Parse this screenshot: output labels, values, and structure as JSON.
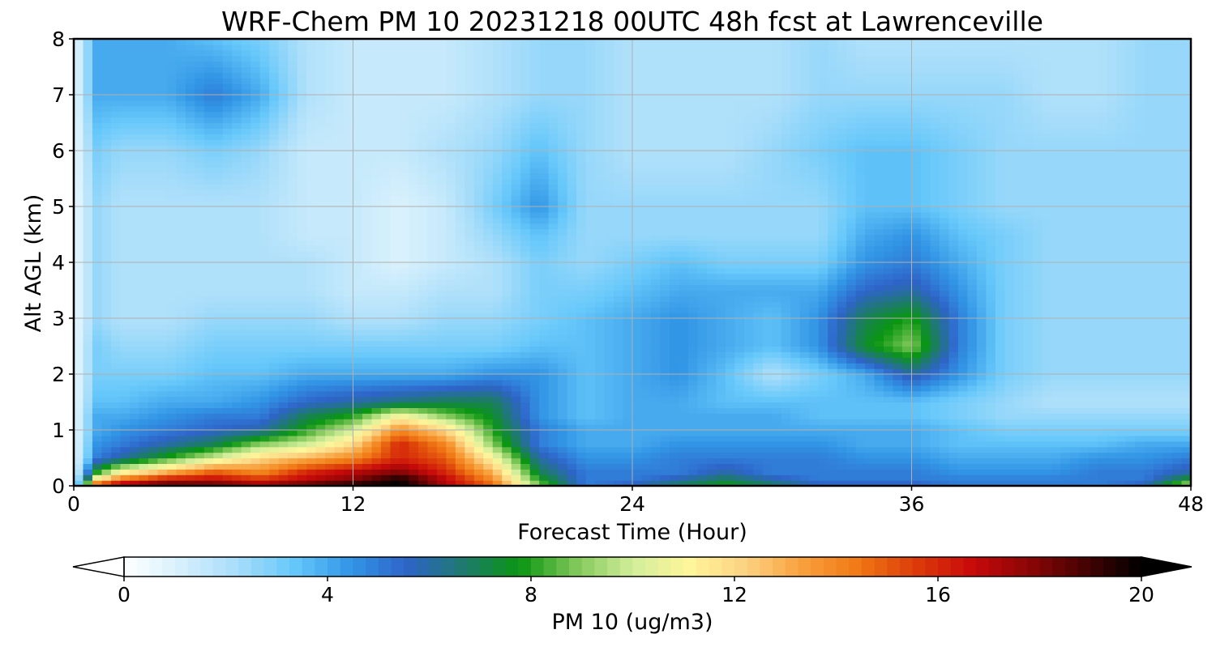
{
  "chart_data": {
    "type": "heatmap",
    "title": "WRF-Chem PM 10  20231218 00UTC 48h fcst at Lawrenceville",
    "xlabel": "Forecast Time (Hour)",
    "ylabel": "Alt AGL (km)",
    "xlim": [
      0,
      48
    ],
    "ylim": [
      0,
      8
    ],
    "x_ticks": [
      "0",
      "12",
      "24",
      "36",
      "48"
    ],
    "y_ticks": [
      "0",
      "1",
      "2",
      "3",
      "4",
      "5",
      "6",
      "7",
      "8"
    ],
    "grid": true,
    "colorbar": {
      "label": "PM 10  (ug/m3)",
      "range": [
        0,
        20
      ],
      "ticks": [
        "0",
        "4",
        "8",
        "12",
        "16",
        "20"
      ],
      "extend": "both",
      "colors": [
        "#ffffff",
        "#d6f0fc",
        "#a7ddfa",
        "#66c8fa",
        "#3296e6",
        "#2e64c8",
        "#1e7a6e",
        "#0a9612",
        "#82c85a",
        "#d2ee9a",
        "#fff59a",
        "#fcd282",
        "#f8a03c",
        "#f07814",
        "#dc3c0a",
        "#c80a0a",
        "#8c0606",
        "#460202",
        "#000000"
      ]
    },
    "x": [
      0,
      1,
      2,
      4,
      6,
      8,
      10,
      12,
      14,
      16,
      18,
      20,
      22,
      24,
      26,
      28,
      30,
      32,
      34,
      36,
      38,
      40,
      42,
      44,
      46,
      48
    ],
    "y": [
      0,
      0.1,
      0.25,
      0.5,
      0.75,
      1,
      1.25,
      1.5,
      2,
      2.5,
      3,
      3.5,
      4,
      4.5,
      5,
      6,
      7,
      8
    ],
    "z": [
      [
        0.5,
        16,
        18,
        19,
        19,
        18,
        19,
        20,
        20,
        17,
        15,
        9,
        5,
        6,
        7,
        8,
        7,
        6,
        6,
        6,
        5,
        5,
        5,
        5,
        6,
        10
      ],
      [
        0.5,
        12,
        15,
        17,
        17,
        16,
        17,
        18,
        20,
        17,
        14,
        8,
        5,
        5,
        6,
        7,
        6,
        5,
        5,
        5,
        5,
        5,
        5,
        5,
        5,
        8
      ],
      [
        0.5,
        8,
        11,
        13,
        15,
        14,
        16,
        17,
        18,
        16,
        13,
        7,
        5,
        5,
        5,
        6,
        5,
        5,
        5,
        5,
        4.5,
        4.5,
        4.5,
        5,
        5,
        6
      ],
      [
        0.5,
        5,
        6,
        8,
        10,
        12,
        13,
        14,
        16,
        15,
        11,
        6,
        4.5,
        4.5,
        5,
        5,
        5,
        5,
        4.5,
        4.5,
        4,
        4,
        4,
        4.5,
        4.5,
        5
      ],
      [
        0.5,
        4.5,
        5,
        6,
        7,
        9,
        10,
        12,
        16,
        14,
        9,
        5,
        4,
        4,
        4.5,
        4.5,
        4.5,
        4.5,
        4,
        4,
        3.5,
        3.5,
        3.5,
        3.5,
        4,
        4
      ],
      [
        0.5,
        4,
        4.5,
        5,
        5.5,
        6,
        8,
        10,
        14,
        12,
        8,
        5,
        4,
        4,
        4,
        4,
        4,
        4,
        4,
        4,
        3.5,
        3,
        3,
        3,
        3,
        3
      ],
      [
        0.5,
        4,
        4,
        4.5,
        5,
        5,
        7,
        8,
        11,
        9,
        7.5,
        4.5,
        3.5,
        4,
        4,
        4,
        4,
        3.5,
        3.5,
        3.5,
        3,
        2.5,
        2.5,
        2.5,
        2.5,
        2.5
      ],
      [
        0.5,
        3.5,
        3.5,
        4,
        4,
        4.5,
        5.5,
        6,
        6.5,
        7,
        7,
        4.5,
        3.5,
        4,
        4,
        3.5,
        3.5,
        3.5,
        3.5,
        3.5,
        3,
        2.5,
        2,
        2,
        2,
        2
      ],
      [
        0.5,
        3,
        3,
        3,
        3.5,
        3.5,
        4,
        4,
        4,
        4,
        4.5,
        4.5,
        3.5,
        4,
        4.5,
        3.5,
        2,
        3,
        4,
        6,
        4.5,
        3,
        2.5,
        2.5,
        2.5,
        2.5
      ],
      [
        0.5,
        3,
        2.5,
        2.5,
        3,
        3,
        3,
        3,
        3,
        3,
        3,
        3.5,
        3.5,
        4,
        4.5,
        4,
        3.5,
        4.5,
        7.5,
        9,
        5,
        3,
        2.5,
        2.5,
        2.5,
        2.5
      ],
      [
        0.5,
        2.5,
        2,
        2,
        2.5,
        2.5,
        2.5,
        2,
        2,
        2.5,
        2.5,
        3,
        3.5,
        4,
        4.5,
        4,
        3.5,
        4.5,
        7,
        8,
        5,
        3,
        2.5,
        2.5,
        2.5,
        2.5
      ],
      [
        0.5,
        2.5,
        2,
        2,
        2,
        2,
        2,
        1.5,
        1.5,
        2,
        2,
        3,
        3,
        3.5,
        4,
        4,
        4,
        4,
        5.5,
        6,
        4.5,
        3,
        2.5,
        2.5,
        2.5,
        2.5
      ],
      [
        0.5,
        2.5,
        2,
        2,
        2,
        2,
        2,
        1.5,
        1,
        1.5,
        2,
        3,
        2.5,
        3,
        3.5,
        3,
        3,
        3,
        4.5,
        5,
        4,
        3,
        2.5,
        2.5,
        2.5,
        2.5
      ],
      [
        0.5,
        2.5,
        2,
        2,
        2,
        2,
        1.5,
        1.5,
        1,
        1.5,
        2.5,
        3.5,
        2.5,
        2.5,
        2.5,
        2.5,
        2.5,
        2.5,
        4,
        4.5,
        3.5,
        3,
        2.5,
        2.5,
        2.5,
        2.5
      ],
      [
        0.5,
        2.5,
        2,
        2,
        2,
        2,
        1.5,
        1.5,
        1,
        1.5,
        3,
        4.5,
        2.5,
        2.5,
        2.5,
        2.5,
        2.5,
        2.5,
        3.5,
        3.5,
        3,
        2.5,
        2.5,
        2.5,
        2.5,
        2.5
      ],
      [
        0.5,
        3,
        2.5,
        2.5,
        3,
        2.5,
        1.5,
        1.5,
        1.5,
        2,
        2.5,
        3.5,
        2.5,
        2,
        2,
        2,
        2.5,
        3,
        3.5,
        3.5,
        3,
        2.5,
        2.5,
        2.5,
        2.5,
        2.5
      ],
      [
        0.5,
        4,
        4,
        4,
        5,
        4,
        2,
        1.5,
        1.5,
        1.5,
        2,
        2.5,
        2.5,
        2,
        2,
        2,
        2,
        2.5,
        2.5,
        2.5,
        2.5,
        2.5,
        2,
        2,
        2.5,
        2.5
      ],
      [
        0.5,
        4,
        4,
        4,
        3.5,
        3,
        2,
        1.5,
        1.5,
        1.5,
        2,
        2.5,
        2.5,
        2,
        2,
        2,
        2,
        2.5,
        2,
        2,
        2,
        2,
        2,
        2,
        2.5,
        2.5
      ]
    ]
  }
}
